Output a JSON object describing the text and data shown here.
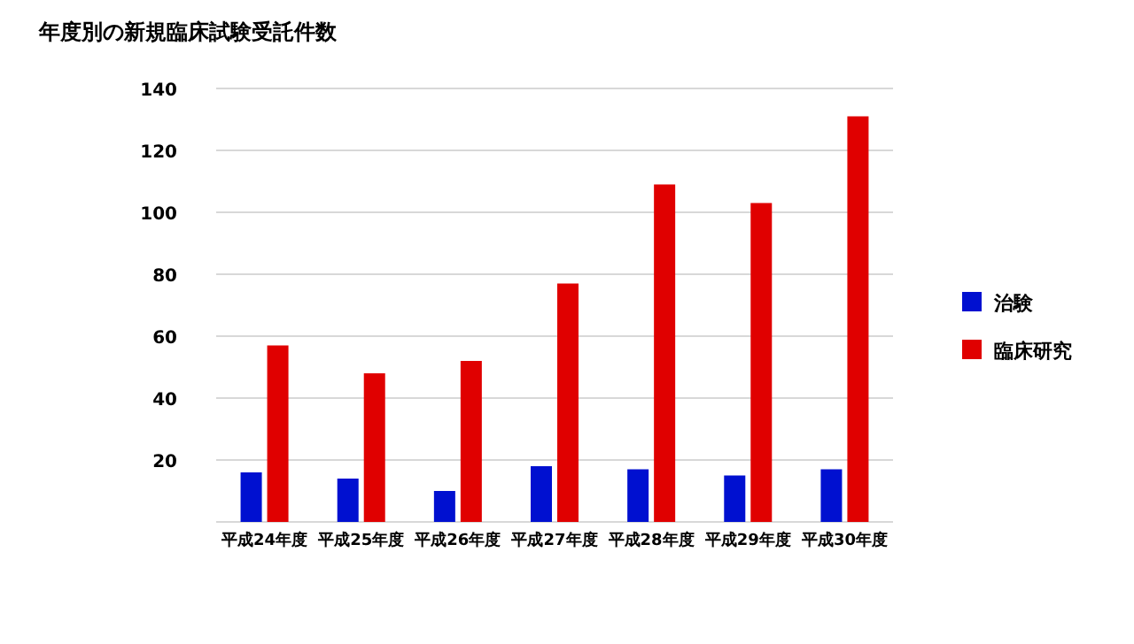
{
  "chart_data": {
    "type": "bar",
    "title": "年度別の新規臨床試験受託件数",
    "categories": [
      "平成24年度",
      "平成25年度",
      "平成26年度",
      "平成27年度",
      "平成28年度",
      "平成29年度",
      "平成30年度"
    ],
    "series": [
      {
        "name": "治験",
        "color": "#0010d0",
        "values": [
          16,
          14,
          10,
          18,
          17,
          15,
          17
        ]
      },
      {
        "name": "臨床研究",
        "color": "#e00000",
        "values": [
          57,
          48,
          52,
          77,
          109,
          103,
          131
        ]
      }
    ],
    "ylim": [
      0,
      140
    ],
    "yticks": [
      20,
      40,
      60,
      80,
      100,
      120,
      140
    ],
    "grid": "y",
    "legend": "right"
  }
}
